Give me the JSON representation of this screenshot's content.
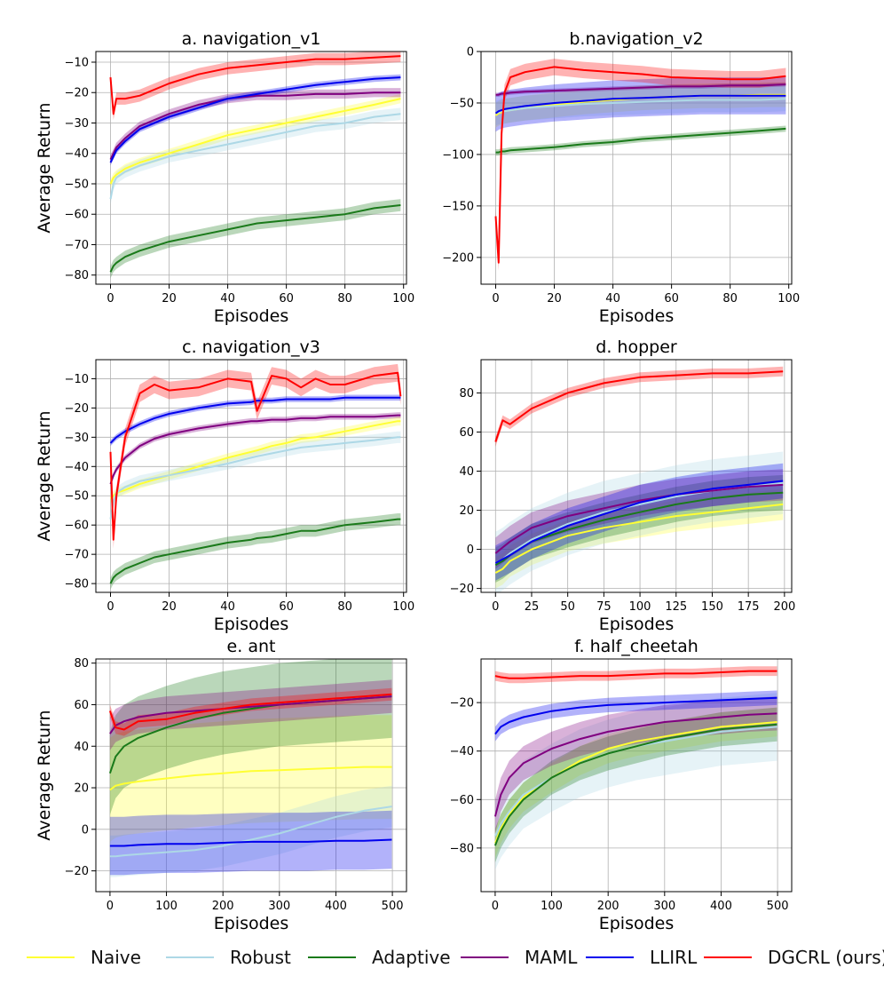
{
  "series_styles": {
    "Naive": "#ffff33",
    "Robust": "#add8e6",
    "Adaptive": "#1a7a1a",
    "MAML": "#800080",
    "LLIRL": "#0000ee",
    "DGCRL (ours)": "#ff0000"
  },
  "legend": {
    "items": [
      {
        "name": "Naive",
        "color": "#ffff33"
      },
      {
        "name": "Robust",
        "color": "#add8e6"
      },
      {
        "name": "Adaptive",
        "color": "#1a7a1a"
      },
      {
        "name": "MAML",
        "color": "#800080"
      },
      {
        "name": "LLIRL",
        "color": "#0000ee"
      },
      {
        "name": "DGCRL (ours)",
        "color": "#ff0000"
      }
    ]
  },
  "chart_data": [
    {
      "type": "line",
      "title": "a. navigation_v1",
      "xlabel": "Episodes",
      "ylabel": "Average Return",
      "xlim": [
        -5,
        101
      ],
      "ylim": [
        -83,
        -6.5
      ],
      "xticks": [
        0,
        20,
        40,
        60,
        80,
        100
      ],
      "yticks": [
        -80,
        -70,
        -60,
        -50,
        -40,
        -30,
        -20,
        -10
      ],
      "x": [
        0,
        1,
        2,
        5,
        10,
        20,
        30,
        40,
        50,
        60,
        70,
        80,
        90,
        99
      ],
      "series": [
        {
          "name": "Naive",
          "values": [
            -50,
            -48,
            -47,
            -45,
            -43,
            -40,
            -37,
            -34,
            -32,
            -30,
            -28,
            -26,
            -24,
            -22
          ],
          "band": 1.5
        },
        {
          "name": "Robust",
          "values": [
            -55,
            -50,
            -48,
            -46,
            -44,
            -41,
            -39,
            -37,
            -35,
            -33,
            -31,
            -30,
            -28,
            -27
          ],
          "band": 2
        },
        {
          "name": "Adaptive",
          "values": [
            -79,
            -77,
            -76,
            -74,
            -72,
            -69,
            -67,
            -65,
            -63,
            -62,
            -61,
            -60,
            -58,
            -57
          ],
          "band": 2
        },
        {
          "name": "MAML",
          "values": [
            -42,
            -40,
            -38,
            -35,
            -31,
            -27,
            -24,
            -22,
            -21,
            -21,
            -20.5,
            -20.5,
            -20,
            -20
          ],
          "band": 1.5
        },
        {
          "name": "LLIRL",
          "values": [
            -43,
            -41,
            -39,
            -36,
            -32,
            -28,
            -25,
            -22,
            -20.5,
            -19,
            -17.5,
            -16.5,
            -15.5,
            -15
          ],
          "band": 1
        },
        {
          "name": "DGCRL (ours)",
          "values": [
            -15,
            -27,
            -22,
            -22,
            -21,
            -17,
            -14,
            -12,
            -11,
            -10,
            -9,
            -9,
            -8.5,
            -8
          ],
          "band": 2
        }
      ]
    },
    {
      "type": "line",
      "title": "b.navigation_v2",
      "xlabel": "Episodes",
      "ylabel": "",
      "xlim": [
        -5,
        101
      ],
      "ylim": [
        -226,
        0
      ],
      "xticks": [
        0,
        20,
        40,
        60,
        80,
        100
      ],
      "yticks": [
        -200,
        -150,
        -100,
        -50,
        0
      ],
      "x": [
        0,
        1,
        2,
        3,
        5,
        10,
        20,
        30,
        40,
        50,
        60,
        70,
        80,
        90,
        99
      ],
      "series": [
        {
          "name": "Naive",
          "values": [
            -62,
            -60,
            -59,
            -58,
            -57,
            -55,
            -52,
            -49,
            -47,
            -45,
            -44,
            -43,
            -43,
            -42,
            -42
          ],
          "band": 12
        },
        {
          "name": "Robust",
          "values": [
            -60,
            -59,
            -58,
            -58,
            -57,
            -55,
            -53,
            -51,
            -50,
            -49,
            -48,
            -47,
            -47,
            -47,
            -46
          ],
          "band": 12
        },
        {
          "name": "Adaptive",
          "values": [
            -98,
            -98,
            -97,
            -97,
            -96,
            -95,
            -93,
            -90,
            -88,
            -85,
            -83,
            -81,
            -79,
            -77,
            -75
          ],
          "band": 3
        },
        {
          "name": "MAML",
          "values": [
            -42,
            -42,
            -41,
            -41,
            -40,
            -39,
            -38,
            -37,
            -36,
            -35,
            -34,
            -34,
            -33,
            -33,
            -32
          ],
          "band": 2
        },
        {
          "name": "LLIRL",
          "values": [
            -60,
            -58,
            -57,
            -56,
            -55,
            -53,
            -50,
            -48,
            -46,
            -45,
            -44,
            -43,
            -43,
            -43,
            -43
          ],
          "band": 18
        },
        {
          "name": "DGCRL (ours)",
          "values": [
            -160,
            -205,
            -80,
            -40,
            -25,
            -20,
            -15,
            -18,
            -20,
            -22,
            -25,
            -26,
            -27,
            -27,
            -24
          ],
          "band": 8
        }
      ]
    },
    {
      "type": "line",
      "title": "c. navigation_v3",
      "xlabel": "Episodes",
      "ylabel": "Average Return",
      "xlim": [
        -5,
        101
      ],
      "ylim": [
        -83,
        -3.5
      ],
      "xticks": [
        0,
        20,
        40,
        60,
        80,
        100
      ],
      "yticks": [
        -80,
        -70,
        -60,
        -50,
        -40,
        -30,
        -20,
        -10
      ],
      "x": [
        0,
        1,
        2,
        5,
        10,
        15,
        20,
        30,
        40,
        48,
        50,
        55,
        60,
        65,
        70,
        75,
        80,
        90,
        98,
        99
      ],
      "series": [
        {
          "name": "Naive",
          "values": [
            -51,
            -50,
            -49,
            -48,
            -46,
            -44.5,
            -43,
            -40,
            -37,
            -35,
            -34.5,
            -33,
            -32,
            -30.5,
            -30,
            -29,
            -28,
            -26,
            -24.5,
            -24.5
          ],
          "band": 1.5
        },
        {
          "name": "Robust",
          "values": [
            -58,
            -52,
            -49,
            -47,
            -45,
            -44,
            -43,
            -41,
            -39,
            -37,
            -36.5,
            -35.5,
            -34.5,
            -33.5,
            -33,
            -32.5,
            -32,
            -31,
            -30,
            -30
          ],
          "band": 2
        },
        {
          "name": "Adaptive",
          "values": [
            -80,
            -78,
            -77,
            -75,
            -73,
            -71,
            -70,
            -68,
            -66,
            -65,
            -64.5,
            -64,
            -63,
            -62,
            -62,
            -61,
            -60,
            -59,
            -58,
            -58
          ],
          "band": 2
        },
        {
          "name": "MAML",
          "values": [
            -46,
            -43,
            -41,
            -37,
            -33,
            -30.5,
            -29,
            -27,
            -25.5,
            -24.5,
            -24.5,
            -24,
            -24,
            -23.5,
            -23.5,
            -23,
            -23,
            -23,
            -22.5,
            -22.5
          ],
          "band": 1
        },
        {
          "name": "LLIRL",
          "values": [
            -32,
            -31,
            -30,
            -28,
            -25.5,
            -23.5,
            -22,
            -20,
            -18.5,
            -18,
            -17.5,
            -17.5,
            -17,
            -17,
            -17,
            -17,
            -16.5,
            -16.5,
            -16.5,
            -16.5
          ],
          "band": 1
        },
        {
          "name": "DGCRL (ours)",
          "values": [
            -35,
            -65,
            -50,
            -30,
            -15,
            -12,
            -14,
            -13,
            -10,
            -11,
            -21,
            -9,
            -10,
            -13,
            -10,
            -12,
            -12,
            -9,
            -8,
            -16
          ],
          "band": 3
        }
      ]
    },
    {
      "type": "line",
      "title": "d. hopper",
      "xlabel": "Episodes",
      "ylabel": "",
      "xlim": [
        -10,
        205
      ],
      "ylim": [
        -22,
        97
      ],
      "xticks": [
        0,
        25,
        50,
        75,
        100,
        125,
        150,
        175,
        200
      ],
      "yticks": [
        -20,
        0,
        20,
        40,
        60,
        80
      ],
      "x": [
        0,
        5,
        10,
        25,
        50,
        75,
        100,
        125,
        150,
        175,
        199
      ],
      "series": [
        {
          "name": "Naive",
          "values": [
            -12,
            -10,
            -6,
            0,
            7,
            11,
            14,
            17,
            19,
            21,
            23
          ],
          "band": 8
        },
        {
          "name": "Robust",
          "values": [
            -7,
            -5,
            -2,
            5,
            13,
            19,
            23,
            27,
            30,
            32,
            34
          ],
          "band": 16
        },
        {
          "name": "Adaptive",
          "values": [
            -8,
            -6,
            -3,
            4,
            10,
            15,
            19,
            23,
            26,
            28,
            29
          ],
          "band": 9
        },
        {
          "name": "MAML",
          "values": [
            -2,
            1,
            4,
            11,
            17,
            21,
            25,
            28,
            30,
            32,
            33
          ],
          "band": 8
        },
        {
          "name": "LLIRL",
          "values": [
            -7,
            -5,
            -3,
            4,
            12,
            18,
            24,
            28,
            31,
            33,
            35
          ],
          "band": 9
        },
        {
          "name": "DGCRL (ours)",
          "values": [
            55,
            66,
            64,
            72,
            80,
            85,
            88,
            89,
            90,
            90,
            91
          ],
          "band": 2.5
        }
      ]
    },
    {
      "type": "line",
      "title": "e. ant",
      "xlabel": "Episodes",
      "ylabel": "Average Return",
      "xlim": [
        -25,
        525
      ],
      "ylim": [
        -30,
        82
      ],
      "xticks": [
        0,
        100,
        200,
        300,
        400,
        500
      ],
      "yticks": [
        -20,
        0,
        20,
        40,
        60,
        80
      ],
      "x": [
        0,
        10,
        25,
        50,
        100,
        150,
        200,
        250,
        300,
        350,
        400,
        450,
        499
      ],
      "series": [
        {
          "name": "Naive",
          "values": [
            19,
            21,
            22,
            23,
            24.5,
            26,
            27,
            28,
            28.5,
            29,
            29.5,
            30,
            30
          ],
          "band": 25
        },
        {
          "name": "Robust",
          "values": [
            -13,
            -13,
            -12.5,
            -12,
            -11,
            -10,
            -8,
            -5,
            -2,
            2,
            6,
            9,
            11
          ],
          "band": 10
        },
        {
          "name": "Adaptive",
          "values": [
            27,
            35,
            40,
            44,
            49,
            53,
            56,
            58,
            60,
            61,
            62,
            63,
            64
          ],
          "band": 20
        },
        {
          "name": "MAML",
          "values": [
            46,
            50,
            52,
            54,
            56,
            57,
            58,
            59,
            60,
            61,
            62,
            63,
            64
          ],
          "band": 8
        },
        {
          "name": "LLIRL",
          "values": [
            -8,
            -8,
            -8,
            -7.5,
            -7,
            -7,
            -6.5,
            -6,
            -6,
            -6,
            -5.5,
            -5.5,
            -5
          ],
          "band": 14
        },
        {
          "name": "DGCRL (ours)",
          "values": [
            57,
            49,
            48,
            52,
            53,
            56,
            58,
            60,
            61,
            62,
            63,
            64,
            65
          ],
          "band": 3
        }
      ]
    },
    {
      "type": "line",
      "title": "f. half_cheetah",
      "xlabel": "Episodes",
      "ylabel": "",
      "xlim": [
        -25,
        525
      ],
      "ylim": [
        -98,
        -2
      ],
      "xticks": [
        0,
        100,
        200,
        300,
        400,
        500
      ],
      "yticks": [
        -80,
        -60,
        -40,
        -20
      ],
      "x": [
        0,
        10,
        25,
        50,
        100,
        150,
        200,
        250,
        300,
        350,
        400,
        450,
        499
      ],
      "series": [
        {
          "name": "Naive",
          "values": [
            -78,
            -72,
            -66,
            -59,
            -51,
            -44,
            -39,
            -36,
            -34,
            -32,
            -30,
            -29,
            -28
          ],
          "band": 6
        },
        {
          "name": "Robust",
          "values": [
            -75,
            -70,
            -65,
            -58,
            -51,
            -45,
            -41,
            -38,
            -36,
            -34,
            -32,
            -31,
            -30
          ],
          "band": 14
        },
        {
          "name": "Adaptive",
          "values": [
            -79,
            -73,
            -67,
            -60,
            -51,
            -45,
            -41,
            -38,
            -35,
            -33,
            -31,
            -30,
            -29
          ],
          "band": 7
        },
        {
          "name": "MAML",
          "values": [
            -67,
            -58,
            -51,
            -45,
            -39,
            -35,
            -32,
            -30,
            -28,
            -27,
            -26,
            -25,
            -24.5
          ],
          "band": 7
        },
        {
          "name": "LLIRL",
          "values": [
            -33,
            -30,
            -28,
            -26,
            -23.5,
            -22,
            -21,
            -20.5,
            -20,
            -19.5,
            -19,
            -18.5,
            -18
          ],
          "band": 3
        },
        {
          "name": "DGCRL (ours)",
          "values": [
            -9,
            -9.5,
            -10,
            -10,
            -9.5,
            -9,
            -9,
            -8.5,
            -8,
            -8,
            -7.5,
            -7,
            -7
          ],
          "band": 2
        }
      ]
    }
  ]
}
